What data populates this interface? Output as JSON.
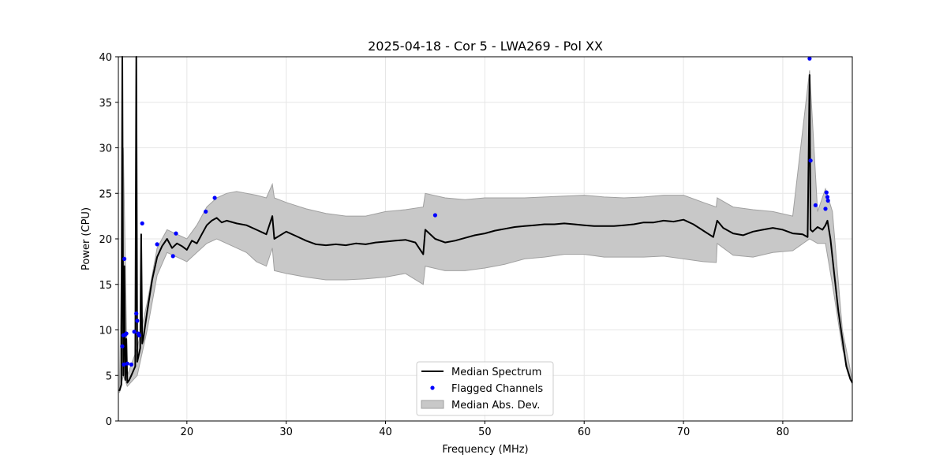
{
  "chart_data": {
    "type": "line",
    "title": "2025-04-18 - Cor 5 - LWA269 - Pol XX",
    "xlabel": "Frequency (MHz)",
    "ylabel": "Power (CPU)",
    "xlim": [
      13.1,
      87.0
    ],
    "ylim": [
      0,
      40
    ],
    "xticks": [
      20,
      30,
      40,
      50,
      60,
      70,
      80
    ],
    "yticks": [
      0,
      5,
      10,
      15,
      20,
      25,
      30,
      35,
      40
    ],
    "grid": true,
    "legend_location": "lower-center",
    "colors": {
      "median": "#000000",
      "flagged": "#0000ff",
      "band": "#c8c8c8",
      "band_edge": "#a0a0a0"
    },
    "series": [
      {
        "name": "Median Spectrum",
        "kind": "line",
        "x": [
          13.2,
          13.4,
          13.5,
          13.6,
          13.7,
          13.8,
          13.9,
          14.0,
          14.2,
          14.4,
          14.6,
          14.8,
          14.9,
          15.0,
          15.1,
          15.3,
          15.4,
          15.5,
          15.6,
          15.8,
          16.0,
          16.5,
          17.0,
          17.5,
          18.0,
          18.5,
          19.0,
          19.5,
          20.0,
          20.5,
          21.0,
          21.5,
          22.0,
          22.5,
          23.0,
          23.5,
          24.0,
          25.0,
          26.0,
          27.0,
          28.0,
          28.6,
          28.8,
          30.0,
          31.0,
          32.0,
          33.0,
          34.0,
          35.0,
          36.0,
          37.0,
          38.0,
          39.0,
          40.0,
          41.0,
          42.0,
          43.0,
          43.8,
          44.0,
          45.0,
          46.0,
          47.0,
          48.0,
          49.0,
          50.0,
          51.0,
          52.0,
          53.0,
          54.0,
          55.0,
          56.0,
          57.0,
          58.0,
          59.0,
          60.0,
          61.0,
          62.0,
          63.0,
          64.0,
          65.0,
          66.0,
          67.0,
          68.0,
          69.0,
          70.0,
          71.0,
          72.0,
          73.0,
          73.4,
          74.0,
          75.0,
          76.0,
          77.0,
          78.0,
          79.0,
          80.0,
          81.0,
          82.0,
          82.5,
          82.7,
          82.8,
          83.0,
          83.5,
          84.0,
          84.3,
          84.5,
          84.8,
          85.2,
          85.6,
          86.0,
          86.4,
          86.8,
          87.0
        ],
        "values": [
          3.3,
          4.0,
          40.0,
          5.0,
          17.0,
          4.5,
          9.0,
          4.2,
          4.5,
          5.0,
          5.5,
          6.0,
          40.0,
          6.5,
          7.0,
          8.0,
          20.5,
          8.5,
          9.0,
          10.5,
          12.0,
          15.5,
          18.0,
          19.2,
          20.0,
          19.0,
          19.5,
          19.2,
          18.8,
          19.8,
          19.5,
          20.5,
          21.5,
          22.0,
          22.3,
          21.8,
          22.0,
          21.7,
          21.5,
          21.0,
          20.5,
          22.5,
          20.0,
          20.8,
          20.3,
          19.8,
          19.4,
          19.3,
          19.4,
          19.3,
          19.5,
          19.4,
          19.6,
          19.7,
          19.8,
          19.9,
          19.6,
          18.3,
          21.0,
          20.0,
          19.6,
          19.8,
          20.1,
          20.4,
          20.6,
          20.9,
          21.1,
          21.3,
          21.4,
          21.5,
          21.6,
          21.6,
          21.7,
          21.6,
          21.5,
          21.4,
          21.4,
          21.4,
          21.5,
          21.6,
          21.8,
          21.8,
          22.0,
          21.9,
          22.1,
          21.6,
          20.9,
          20.2,
          22.0,
          21.2,
          20.6,
          20.4,
          20.8,
          21.0,
          21.2,
          21.0,
          20.6,
          20.5,
          20.2,
          38.0,
          21.0,
          20.8,
          21.3,
          21.0,
          21.5,
          22.0,
          20.0,
          16.0,
          12.0,
          9.0,
          6.0,
          4.6,
          4.2
        ]
      },
      {
        "name": "Median Abs. Dev.",
        "kind": "band",
        "x": [
          13.2,
          13.6,
          14.0,
          15.0,
          16.0,
          17.0,
          18.0,
          19.0,
          20.0,
          21.0,
          22.0,
          23.0,
          24.0,
          25.0,
          26.0,
          27.0,
          28.0,
          28.6,
          28.8,
          30.0,
          32.0,
          34.0,
          36.0,
          38.0,
          40.0,
          42.0,
          43.8,
          44.0,
          46.0,
          48.0,
          50.0,
          52.0,
          54.0,
          56.0,
          58.0,
          60.0,
          62.0,
          64.0,
          66.0,
          68.0,
          70.0,
          72.0,
          73.3,
          73.4,
          75.0,
          77.0,
          79.0,
          81.0,
          82.7,
          83.5,
          84.3,
          85.0,
          86.0,
          87.0
        ],
        "upper": [
          3.8,
          30.0,
          5.0,
          8.0,
          13.0,
          19.0,
          21.0,
          20.5,
          20.0,
          21.5,
          23.5,
          24.5,
          25.0,
          25.2,
          25.0,
          24.8,
          24.5,
          26.0,
          24.5,
          24.0,
          23.3,
          22.8,
          22.5,
          22.5,
          23.0,
          23.2,
          23.5,
          25.0,
          24.5,
          24.3,
          24.5,
          24.5,
          24.5,
          24.6,
          24.7,
          24.8,
          24.6,
          24.5,
          24.6,
          24.8,
          24.8,
          24.0,
          23.5,
          24.5,
          23.5,
          23.2,
          23.0,
          22.5,
          38.5,
          23.0,
          25.5,
          23.0,
          10.0,
          4.5
        ],
        "lower": [
          3.1,
          5.0,
          3.8,
          5.0,
          10.0,
          16.0,
          18.5,
          18.0,
          17.5,
          18.5,
          19.5,
          20.0,
          19.5,
          19.0,
          18.5,
          17.5,
          17.0,
          19.0,
          16.5,
          16.2,
          15.8,
          15.5,
          15.5,
          15.6,
          15.8,
          16.2,
          15.0,
          17.0,
          16.5,
          16.5,
          16.8,
          17.2,
          17.8,
          18.0,
          18.3,
          18.3,
          18.0,
          18.0,
          18.0,
          18.1,
          17.8,
          17.5,
          17.4,
          19.5,
          18.2,
          18.0,
          18.5,
          18.7,
          20.0,
          19.5,
          19.5,
          15.0,
          8.0,
          4.0
        ]
      },
      {
        "name": "Flagged Channels",
        "kind": "scatter",
        "x": [
          13.5,
          13.6,
          13.65,
          13.7,
          13.8,
          13.9,
          14.0,
          14.4,
          14.7,
          14.9,
          15.0,
          15.1,
          15.2,
          15.5,
          17.0,
          18.6,
          18.9,
          21.9,
          22.8,
          45.0,
          82.7,
          82.8,
          83.3,
          84.3,
          84.4,
          84.5,
          84.55
        ],
        "values": [
          8.2,
          9.4,
          6.2,
          17.8,
          9.5,
          9.6,
          6.3,
          6.2,
          9.8,
          11.8,
          11.0,
          9.6,
          9.4,
          21.7,
          19.4,
          18.1,
          20.6,
          23.0,
          24.5,
          22.6,
          39.8,
          28.6,
          23.7,
          23.3,
          25.1,
          24.6,
          24.2
        ]
      }
    ]
  }
}
